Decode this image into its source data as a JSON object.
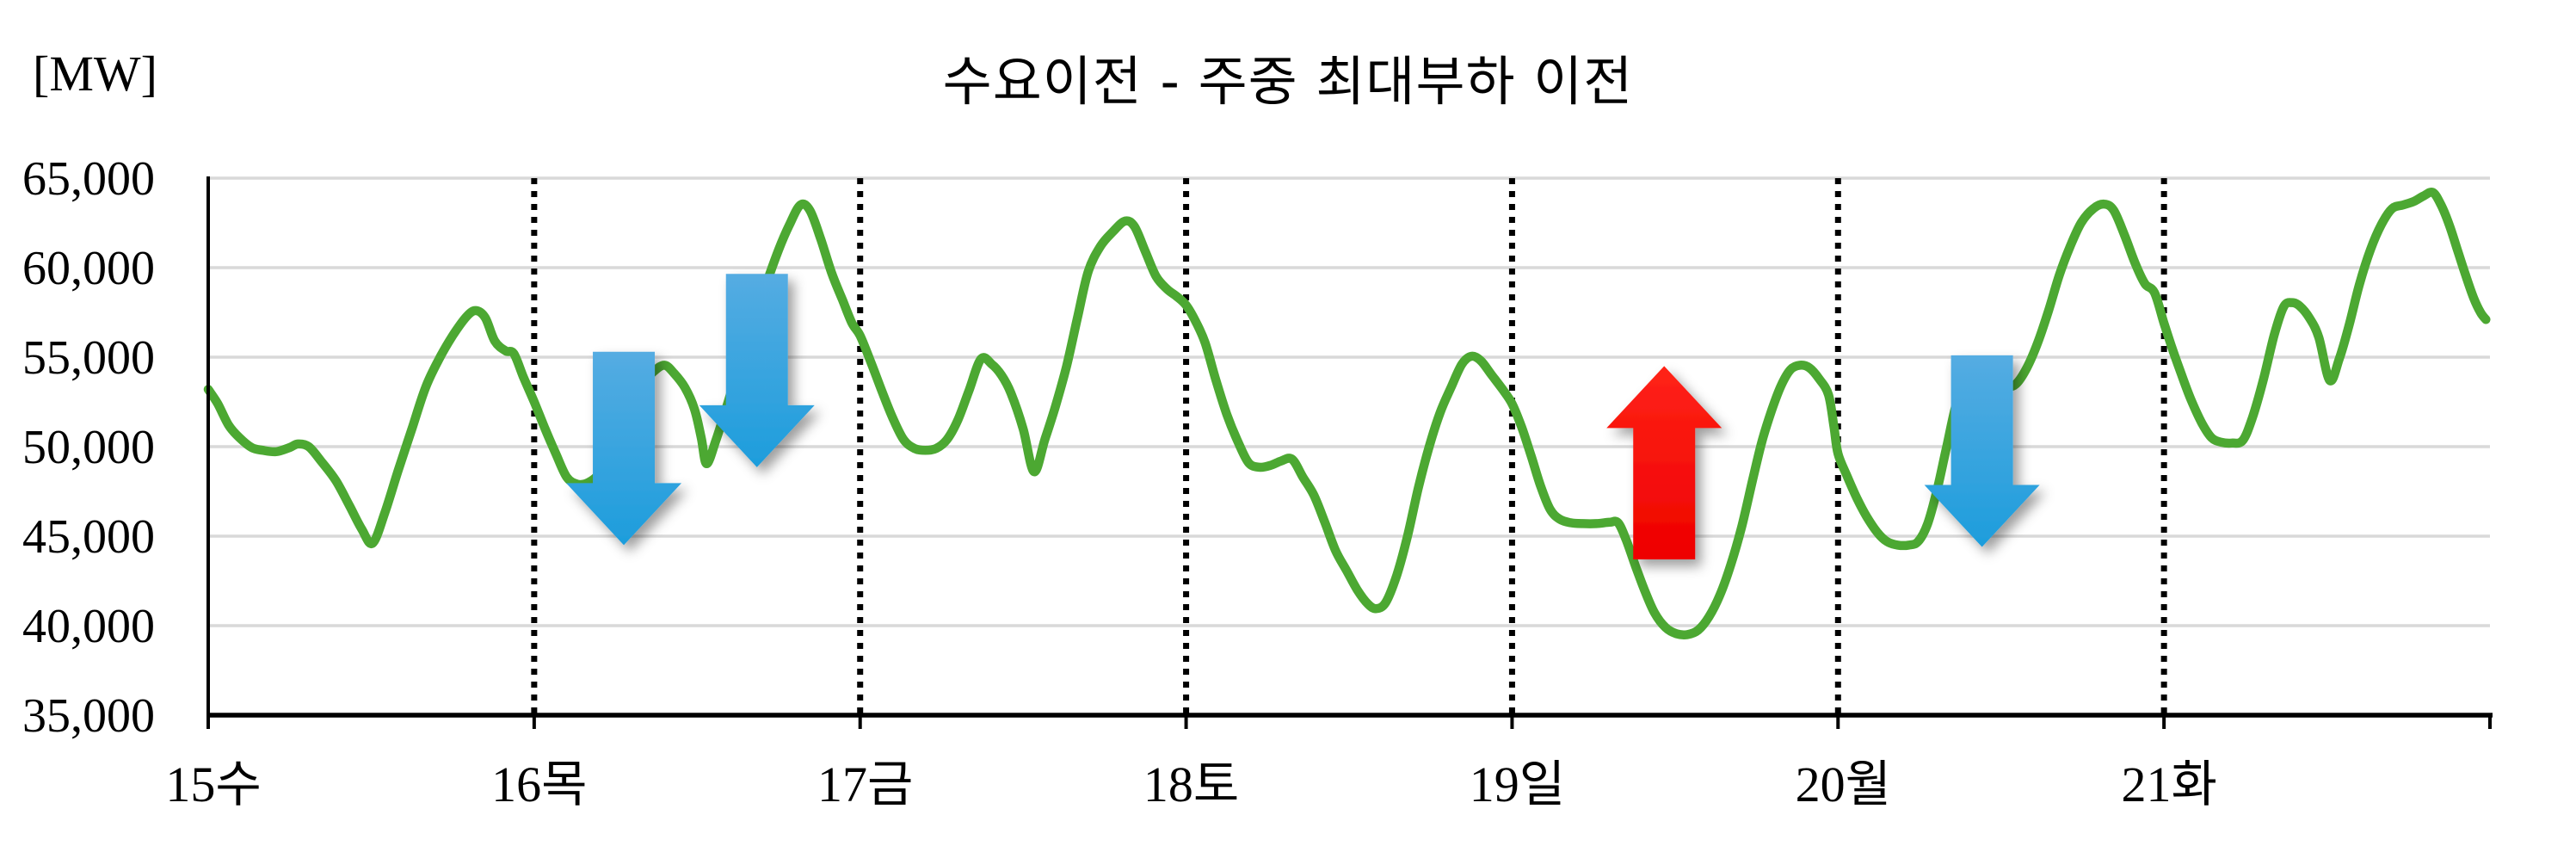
{
  "chart_data": {
    "type": "line",
    "title": "수요이전 - 주중 최대부하 이전",
    "unit_label": "[MW]",
    "grid": true,
    "legend": false,
    "y_axis": {
      "min": 35000,
      "max": 65000,
      "tick_step": 5000,
      "ticks": [
        "65,000",
        "60,000",
        "55,000",
        "50,000",
        "45,000",
        "40,000",
        "35,000"
      ],
      "tick_values": [
        65000,
        60000,
        55000,
        50000,
        45000,
        40000,
        35000
      ]
    },
    "x_axis": {
      "labels": [
        "15수",
        "16목",
        "17금",
        "18토",
        "19일",
        "20월",
        "21화"
      ],
      "hours_per_day": 24,
      "total_hours": 168,
      "day_boundary_dotted_hours": [
        24,
        48,
        72,
        96,
        120,
        144
      ]
    },
    "series": [
      {
        "id": "hourly-load-mw",
        "color": "#4CA832",
        "points": [
          [
            0,
            53200
          ],
          [
            0.7,
            52400
          ],
          [
            1.5,
            51200
          ],
          [
            2.3,
            50500
          ],
          [
            3.2,
            49950
          ],
          [
            4,
            49800
          ],
          [
            5,
            49720
          ],
          [
            6,
            49950
          ],
          [
            6.6,
            50150
          ],
          [
            7.4,
            50000
          ],
          [
            8.3,
            49200
          ],
          [
            9.4,
            48100
          ],
          [
            10.4,
            46700
          ],
          [
            11.3,
            45400
          ],
          [
            12.1,
            44600
          ],
          [
            13,
            46300
          ],
          [
            14,
            48700
          ],
          [
            15,
            51000
          ],
          [
            16,
            53300
          ],
          [
            17,
            54900
          ],
          [
            18,
            56200
          ],
          [
            19,
            57250
          ],
          [
            19.7,
            57600
          ],
          [
            20.4,
            57200
          ],
          [
            21.1,
            55900
          ],
          [
            21.9,
            55350
          ],
          [
            22.5,
            55200
          ],
          [
            23.2,
            53900
          ],
          [
            24,
            52500
          ],
          [
            24.8,
            51000
          ],
          [
            25.6,
            49600
          ],
          [
            26.4,
            48300
          ],
          [
            27.2,
            47900
          ],
          [
            28,
            48000
          ],
          [
            28.8,
            48500
          ],
          [
            29.6,
            49600
          ],
          [
            30.4,
            51000
          ],
          [
            31.2,
            52400
          ],
          [
            32,
            53500
          ],
          [
            32.8,
            54200
          ],
          [
            33.6,
            54550
          ],
          [
            34.3,
            54100
          ],
          [
            35.1,
            53300
          ],
          [
            35.8,
            52100
          ],
          [
            36.3,
            50500
          ],
          [
            36.7,
            49050
          ],
          [
            37.4,
            50400
          ],
          [
            38.2,
            52300
          ],
          [
            39,
            54300
          ],
          [
            40,
            56600
          ],
          [
            41,
            58900
          ],
          [
            42,
            61000
          ],
          [
            42.8,
            62400
          ],
          [
            43.6,
            63500
          ],
          [
            44.3,
            63200
          ],
          [
            45.1,
            61600
          ],
          [
            45.9,
            59700
          ],
          [
            46.7,
            58200
          ],
          [
            47.4,
            56900
          ],
          [
            48,
            56200
          ],
          [
            48.8,
            54700
          ],
          [
            49.6,
            53100
          ],
          [
            50.4,
            51600
          ],
          [
            51.2,
            50400
          ],
          [
            52,
            49900
          ],
          [
            52.8,
            49800
          ],
          [
            53.6,
            49900
          ],
          [
            54.4,
            50400
          ],
          [
            55.2,
            51500
          ],
          [
            56,
            53100
          ],
          [
            56.9,
            54900
          ],
          [
            57.7,
            54600
          ],
          [
            58.4,
            54000
          ],
          [
            59.1,
            53000
          ],
          [
            60,
            51000
          ],
          [
            60.8,
            48600
          ],
          [
            61.6,
            50400
          ],
          [
            62.4,
            52300
          ],
          [
            63.2,
            54500
          ],
          [
            64,
            57200
          ],
          [
            64.8,
            59800
          ],
          [
            65.7,
            61200
          ],
          [
            66.6,
            62000
          ],
          [
            67.5,
            62600
          ],
          [
            68.2,
            62300
          ],
          [
            69,
            60900
          ],
          [
            69.8,
            59500
          ],
          [
            70.6,
            58800
          ],
          [
            71.3,
            58400
          ],
          [
            72,
            57900
          ],
          [
            72.7,
            57000
          ],
          [
            73.4,
            55800
          ],
          [
            74.2,
            53700
          ],
          [
            75,
            51800
          ],
          [
            75.8,
            50300
          ],
          [
            76.6,
            49100
          ],
          [
            77.4,
            48850
          ],
          [
            78.2,
            48950
          ],
          [
            79,
            49200
          ],
          [
            79.8,
            49300
          ],
          [
            80.6,
            48300
          ],
          [
            81.4,
            47300
          ],
          [
            82.2,
            45800
          ],
          [
            83,
            44200
          ],
          [
            83.8,
            43100
          ],
          [
            84.6,
            42000
          ],
          [
            85.4,
            41200
          ],
          [
            86,
            40950
          ],
          [
            86.7,
            41300
          ],
          [
            87.5,
            42800
          ],
          [
            88.3,
            45000
          ],
          [
            89.1,
            47700
          ],
          [
            89.9,
            50000
          ],
          [
            90.7,
            51900
          ],
          [
            91.5,
            53300
          ],
          [
            92.3,
            54600
          ],
          [
            93,
            55050
          ],
          [
            93.7,
            54800
          ],
          [
            94.5,
            54000
          ],
          [
            95.3,
            53200
          ],
          [
            96,
            52400
          ],
          [
            96.7,
            51100
          ],
          [
            97.4,
            49500
          ],
          [
            98.1,
            47800
          ],
          [
            98.8,
            46500
          ],
          [
            99.5,
            45950
          ],
          [
            100.3,
            45750
          ],
          [
            101.2,
            45700
          ],
          [
            102.2,
            45700
          ],
          [
            103.2,
            45780
          ],
          [
            103.8,
            45750
          ],
          [
            104.4,
            44800
          ],
          [
            105.1,
            43300
          ],
          [
            105.8,
            41900
          ],
          [
            106.5,
            40700
          ],
          [
            107.3,
            39900
          ],
          [
            108.1,
            39550
          ],
          [
            108.9,
            39500
          ],
          [
            109.7,
            39750
          ],
          [
            110.5,
            40500
          ],
          [
            111.3,
            41700
          ],
          [
            112.1,
            43400
          ],
          [
            112.9,
            45500
          ],
          [
            113.7,
            48100
          ],
          [
            114.4,
            50300
          ],
          [
            115.1,
            52000
          ],
          [
            115.8,
            53400
          ],
          [
            116.5,
            54300
          ],
          [
            117.2,
            54550
          ],
          [
            117.9,
            54400
          ],
          [
            118.6,
            53800
          ],
          [
            119.3,
            52900
          ],
          [
            119.7,
            51100
          ],
          [
            120,
            49600
          ],
          [
            120.7,
            48300
          ],
          [
            121.4,
            47100
          ],
          [
            122.1,
            46100
          ],
          [
            122.9,
            45200
          ],
          [
            123.6,
            44700
          ],
          [
            124.4,
            44500
          ],
          [
            125.2,
            44500
          ],
          [
            125.9,
            44700
          ],
          [
            126.6,
            45700
          ],
          [
            127.3,
            47600
          ],
          [
            128,
            50000
          ],
          [
            128.8,
            52600
          ],
          [
            129.5,
            52900
          ],
          [
            130.3,
            53050
          ],
          [
            131.3,
            53150
          ],
          [
            132.3,
            53300
          ],
          [
            133.1,
            53500
          ],
          [
            133.9,
            54400
          ],
          [
            134.7,
            55800
          ],
          [
            135.5,
            57600
          ],
          [
            136.3,
            59600
          ],
          [
            137.1,
            61200
          ],
          [
            137.9,
            62500
          ],
          [
            138.8,
            63300
          ],
          [
            139.6,
            63550
          ],
          [
            140.3,
            63200
          ],
          [
            141.1,
            61800
          ],
          [
            141.9,
            60200
          ],
          [
            142.6,
            59100
          ],
          [
            143.3,
            58600
          ],
          [
            144,
            56900
          ],
          [
            144.6,
            55500
          ],
          [
            145.3,
            54000
          ],
          [
            146,
            52600
          ],
          [
            146.8,
            51300
          ],
          [
            147.5,
            50500
          ],
          [
            148.2,
            50250
          ],
          [
            149,
            50200
          ],
          [
            149.8,
            50350
          ],
          [
            150.5,
            51600
          ],
          [
            151.3,
            53700
          ],
          [
            152.1,
            56200
          ],
          [
            152.8,
            57800
          ],
          [
            153.4,
            58050
          ],
          [
            154,
            57850
          ],
          [
            154.7,
            57200
          ],
          [
            155.4,
            56100
          ],
          [
            156.2,
            53700
          ],
          [
            156.9,
            54900
          ],
          [
            157.6,
            56700
          ],
          [
            158.4,
            59100
          ],
          [
            159.2,
            61000
          ],
          [
            160,
            62400
          ],
          [
            160.8,
            63300
          ],
          [
            161.6,
            63500
          ],
          [
            162.4,
            63700
          ],
          [
            163.1,
            64000
          ],
          [
            163.8,
            64200
          ],
          [
            164.4,
            63500
          ],
          [
            165,
            62400
          ],
          [
            165.6,
            61000
          ],
          [
            166.2,
            59600
          ],
          [
            166.8,
            58300
          ],
          [
            167.3,
            57500
          ],
          [
            167.7,
            57100
          ]
        ]
      }
    ],
    "arrows": [
      {
        "id": "shift-down-1",
        "direction": "down",
        "color_key": "blue",
        "hour": 30.6,
        "tail_mw": 55300,
        "tip_mw": 44500
      },
      {
        "id": "shift-down-2",
        "direction": "down",
        "color_key": "blue",
        "hour": 40.4,
        "tail_mw": 59650,
        "tip_mw": 48850
      },
      {
        "id": "shift-up-1",
        "direction": "up",
        "color_key": "red",
        "hour": 107.2,
        "tail_mw": 43700,
        "tip_mw": 54500
      },
      {
        "id": "shift-down-3",
        "direction": "down",
        "color_key": "blue",
        "hour": 130.6,
        "tail_mw": 55100,
        "tip_mw": 44400
      }
    ],
    "colors": {
      "line_green": "#4CA832",
      "arrow_blue_top": "#55ACE2",
      "arrow_blue_bottom": "#1D9DDC",
      "arrow_red_top": "#FF2317",
      "arrow_red_bottom": "#EE0000",
      "gridline": "#D9D9D9",
      "axis": "#000000",
      "dotted_line": "#000000",
      "background": "#FFFFFF"
    }
  }
}
